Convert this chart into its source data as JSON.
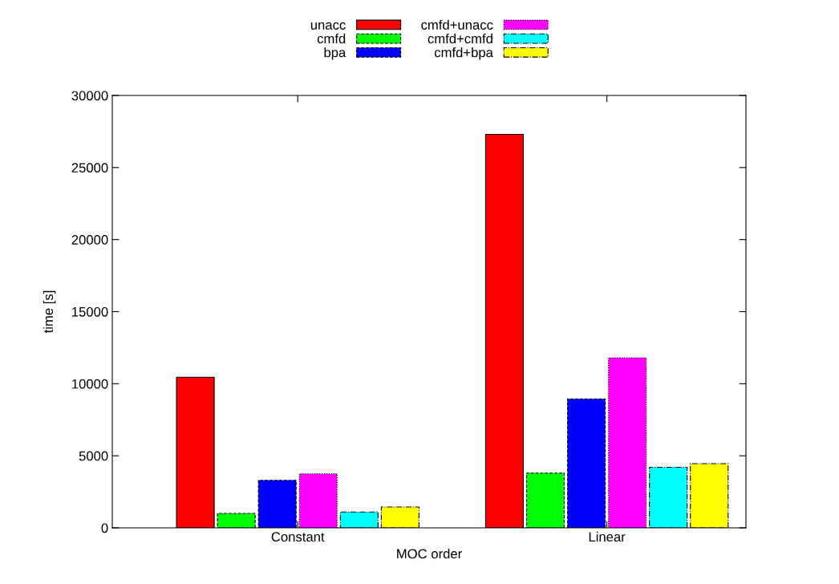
{
  "chart_data": {
    "type": "bar",
    "xlabel": "MOC order",
    "ylabel": "time [s]",
    "categories": [
      "Constant",
      "Linear"
    ],
    "series": [
      {
        "name": "unacc",
        "color": "#ff0000",
        "line_style": "solid",
        "values": [
          10450,
          27300
        ]
      },
      {
        "name": "cmfd",
        "color": "#00ff00",
        "line_style": "dashed",
        "values": [
          1000,
          3800
        ]
      },
      {
        "name": "bpa",
        "color": "#0000ff",
        "line_style": "dashed",
        "values": [
          3300,
          8950
        ]
      },
      {
        "name": "cmfd+unacc",
        "color": "#ff00ff",
        "line_style": "dotted",
        "values": [
          3750,
          11800
        ]
      },
      {
        "name": "cmfd+cmfd",
        "color": "#00ffff",
        "line_style": "dashdot",
        "values": [
          1100,
          4200
        ]
      },
      {
        "name": "cmfd+bpa",
        "color": "#ffff00",
        "line_style": "dashdot",
        "values": [
          1450,
          4450
        ]
      }
    ],
    "ylim": [
      0,
      30000
    ],
    "yticks": [
      0,
      5000,
      10000,
      15000,
      20000,
      25000,
      30000
    ],
    "grid": false,
    "legend": "top"
  }
}
